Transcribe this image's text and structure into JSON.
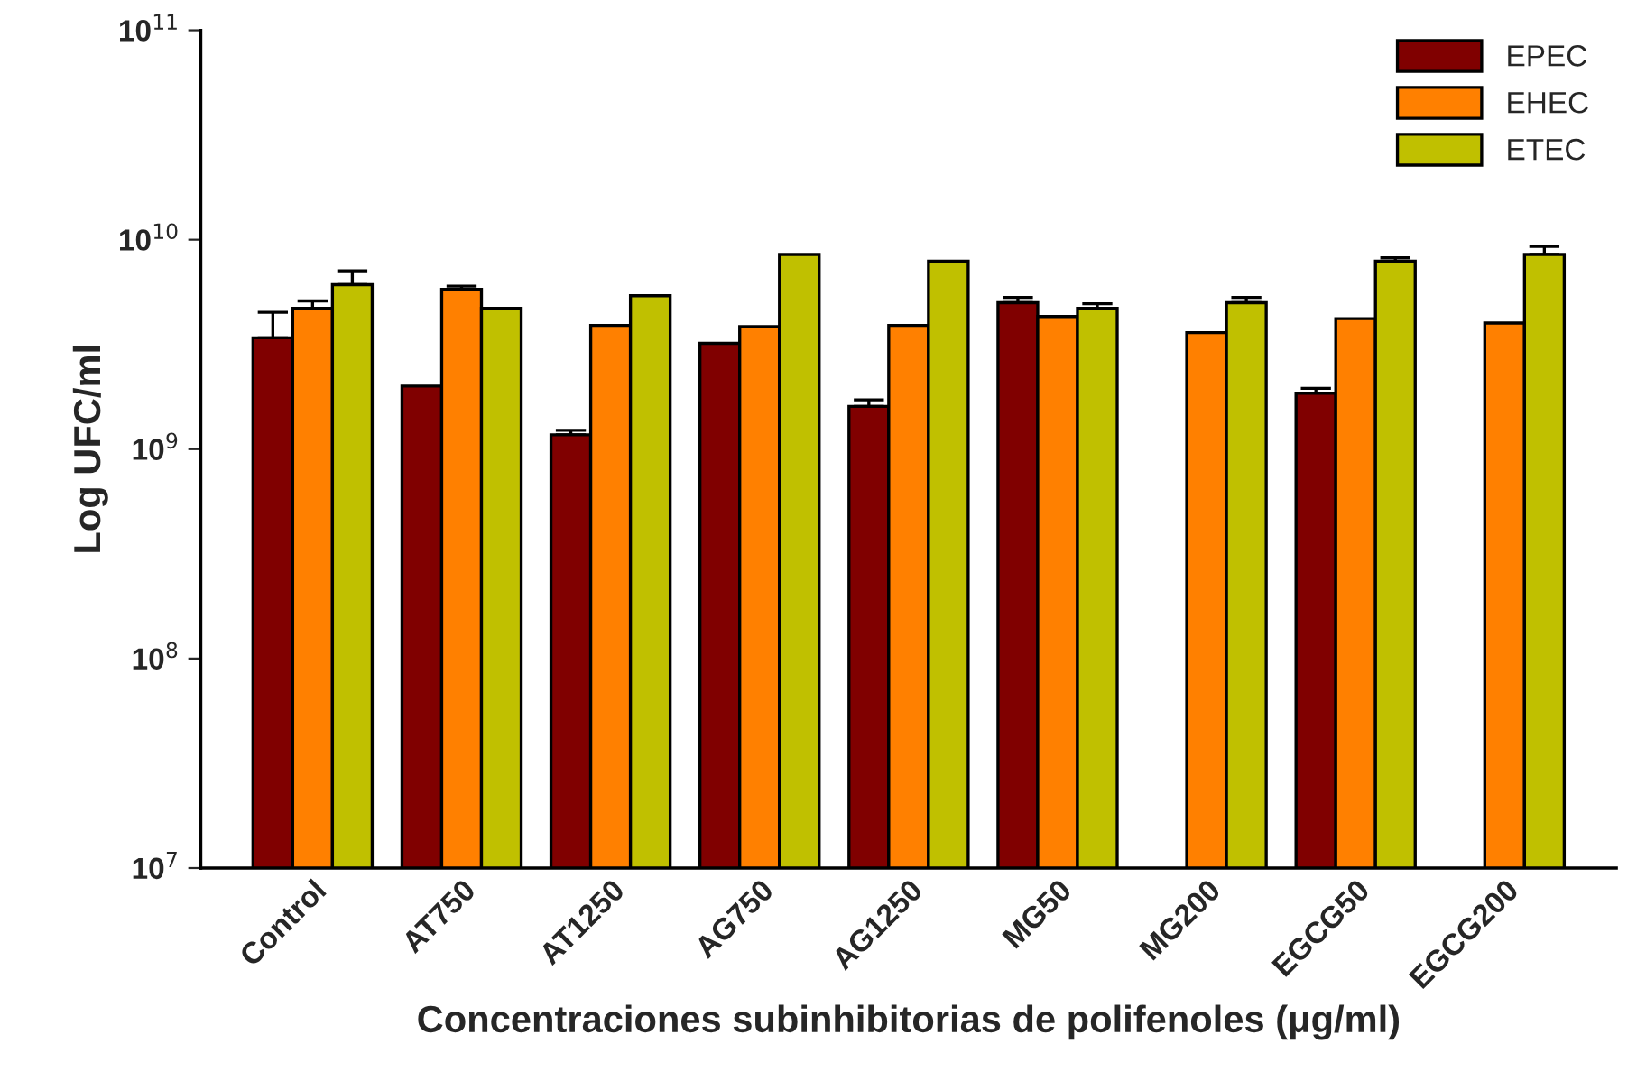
{
  "chart_data": {
    "type": "bar",
    "xlabel": "Concentraciones subinhibitorias de polifenoles (μg/ml)",
    "ylabel": "Log UFC/ml",
    "categories": [
      "Control",
      "AT750",
      "AT1250",
      "AG750",
      "AG1250",
      "MG50",
      "MG200",
      "EGCG50",
      "EGCG200"
    ],
    "series": [
      {
        "name": "EPEC",
        "color": "#800000",
        "values": [
          3400000000.0,
          2000000000.0,
          1170000000.0,
          3200000000.0,
          1600000000.0,
          5000000000.0,
          null,
          1850000000.0,
          null
        ],
        "errors": [
          [
            3400000000.0,
            4500000000.0
          ],
          null,
          [
            1170000000.0,
            1230000000.0
          ],
          null,
          [
            1600000000.0,
            1720000000.0
          ],
          [
            5000000000.0,
            5300000000.0
          ],
          null,
          [
            1850000000.0,
            1950000000.0
          ],
          null
        ]
      },
      {
        "name": "EHEC",
        "color": "#ff8000",
        "values": [
          4700000000.0,
          5800000000.0,
          3900000000.0,
          3850000000.0,
          3900000000.0,
          4300000000.0,
          3600000000.0,
          4200000000.0,
          4000000000.0
        ],
        "errors": [
          [
            4700000000.0,
            5100000000.0
          ],
          [
            5800000000.0,
            6000000000.0
          ],
          null,
          null,
          null,
          null,
          null,
          null,
          null
        ]
      },
      {
        "name": "ETEC",
        "color": "#c0c000",
        "values": [
          6100000000.0,
          4700000000.0,
          5400000000.0,
          8500000000.0,
          7900000000.0,
          4700000000.0,
          5000000000.0,
          7900000000.0,
          8500000000.0
        ],
        "errors": [
          [
            6100000000.0,
            7100000000.0
          ],
          null,
          null,
          null,
          null,
          [
            4700000000.0,
            4950000000.0
          ],
          [
            5000000000.0,
            5300000000.0
          ],
          [
            7900000000.0,
            8200000000.0
          ],
          [
            8500000000.0,
            9300000000.0
          ]
        ]
      }
    ],
    "log": "y",
    "ylim": [
      10000000.0,
      100000000000.0
    ],
    "yticks": [
      {
        "value": 10000000.0,
        "label": "10$^{7}$"
      },
      {
        "value": 100000000.0,
        "label": "10$^{8}$"
      },
      {
        "value": 1000000000.0,
        "label": "10$^{9}$"
      },
      {
        "value": 10000000000.0,
        "label": "10$^{10}$"
      },
      {
        "value": 100000000000.0,
        "label": "10$^{11}$"
      }
    ],
    "legend": "top right",
    "grid": false
  }
}
